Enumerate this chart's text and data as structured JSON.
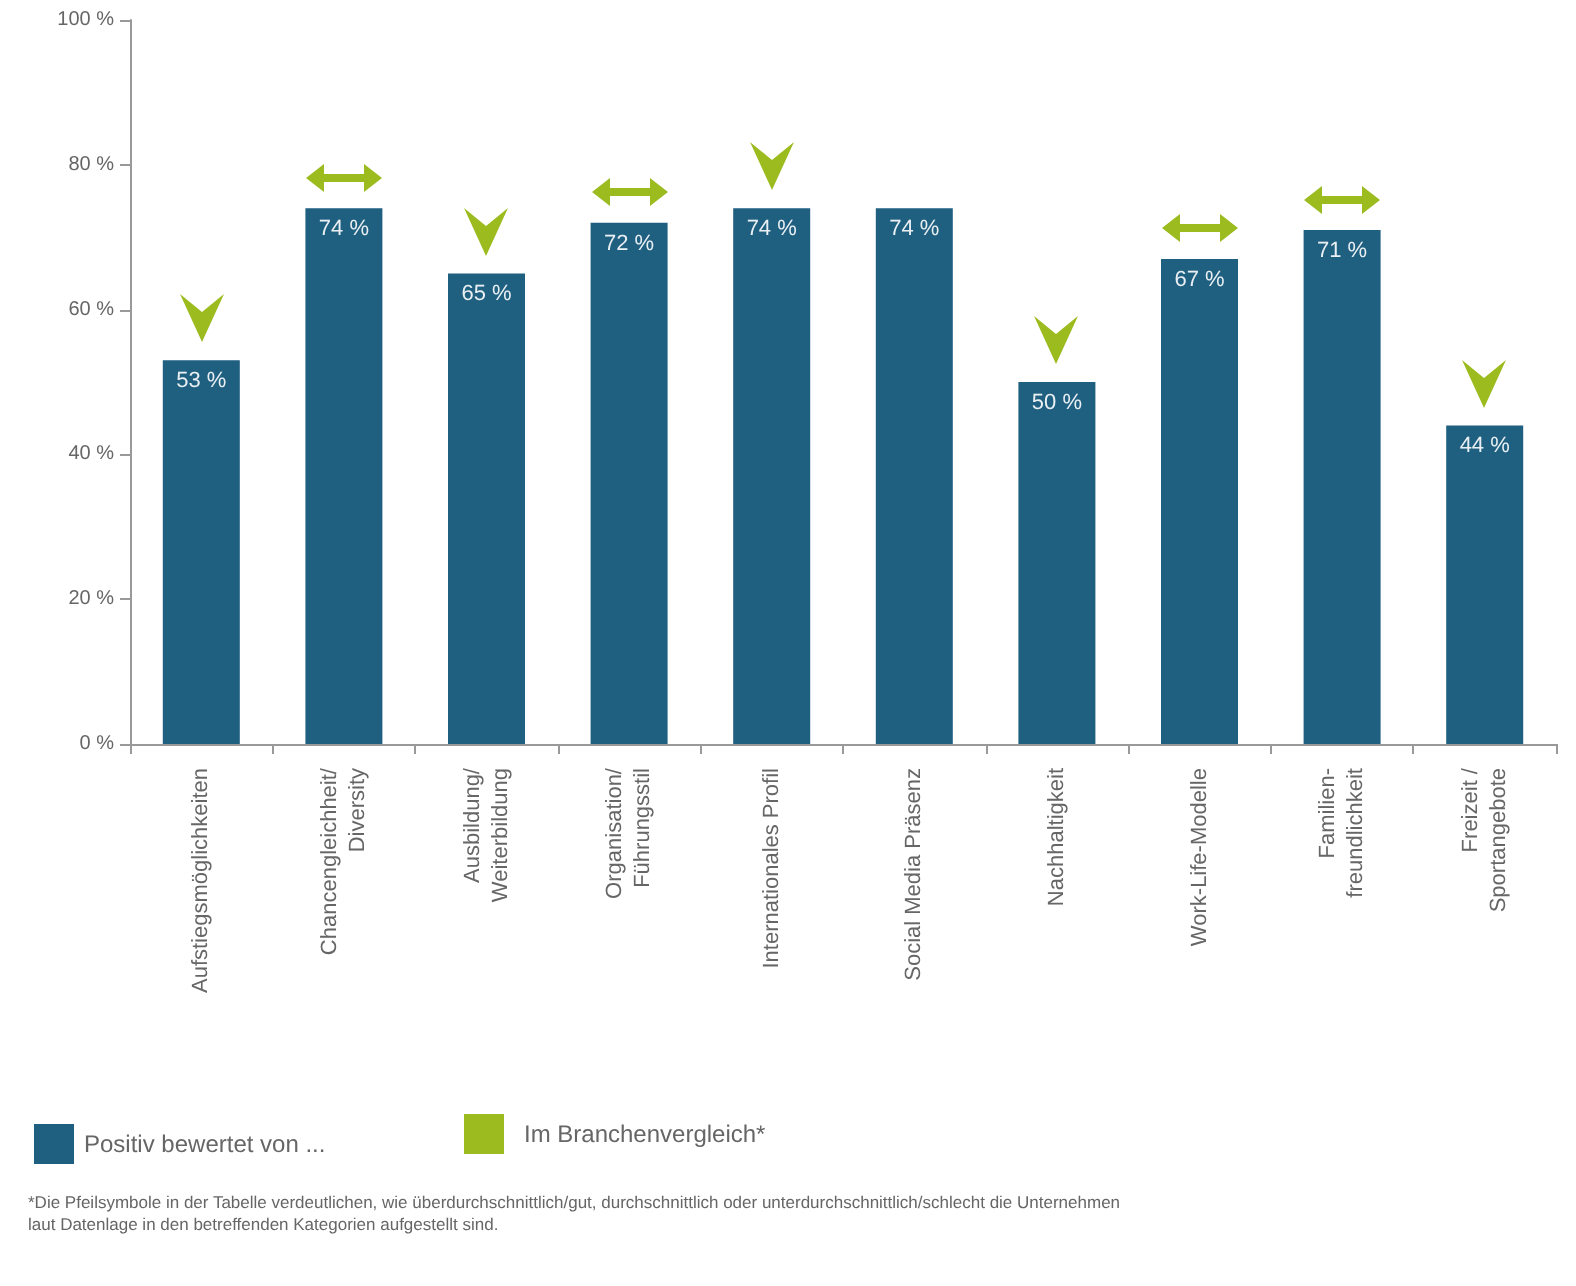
{
  "chart_data": {
    "type": "bar",
    "categories": [
      "Aufstiegsmöglichkeiten",
      "Chancengleichheit/\nDiversity",
      "Ausbildung/\nWeiterbildung",
      "Organisation/\nFührungsstil",
      "Internationales Profil",
      "Social Media Präsenz",
      "Nachhaltigkeit",
      "Work-Life-Modelle",
      "Familien-\nfreundlichkeit",
      "Freizeit /\nSportangebote"
    ],
    "series": [
      {
        "name": "Positiv bewertet von ...",
        "color": "#1f5f80",
        "values": [
          53,
          74,
          65,
          72,
          74,
          74,
          50,
          67,
          71,
          44
        ],
        "value_labels": [
          "53 %",
          "74 %",
          "65 %",
          "72 %",
          "74 %",
          "74 %",
          "50 %",
          "67 %",
          "71 %",
          "44 %"
        ]
      }
    ],
    "ylim": [
      0,
      100
    ],
    "yticks": [
      {
        "value": 0,
        "label": "0 %"
      },
      {
        "value": 20,
        "label": "20 %"
      },
      {
        "value": 40,
        "label": "40 %"
      },
      {
        "value": 60,
        "label": "60 %"
      },
      {
        "value": 80,
        "label": "80 %"
      },
      {
        "value": 100,
        "label": "100 %"
      }
    ],
    "grid": false,
    "legend": "bottom left",
    "annotations": [
      "Im Branchenvergleich*",
      "*Die Pfeilsymbole in der Tabelle verdeutlichen, wie überdurchschnittlich/gut, durchschnittlich oder unterdurchschnittlich/schlecht die Unternehmen laut Datenlage in den betreffenden Kategorien aufgestellt sind."
    ]
  }
}
